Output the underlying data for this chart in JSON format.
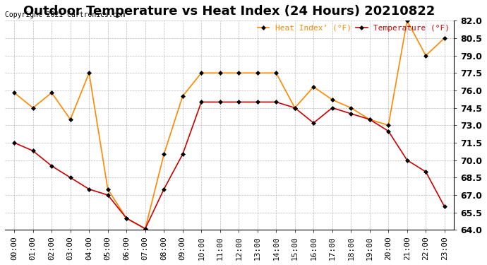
{
  "title": "Outdoor Temperature vs Heat Index (24 Hours) 20210822",
  "copyright": "Copyright 2021 Cartronics.com",
  "legend_heat": "Heat Index’ (°F)",
  "legend_temp": "Temperature (°F)",
  "hours": [
    "00:00",
    "01:00",
    "02:00",
    "03:00",
    "04:00",
    "05:00",
    "06:00",
    "07:00",
    "08:00",
    "09:00",
    "10:00",
    "11:00",
    "12:00",
    "13:00",
    "14:00",
    "15:00",
    "16:00",
    "17:00",
    "18:00",
    "19:00",
    "20:00",
    "21:00",
    "22:00",
    "23:00"
  ],
  "temperature": [
    71.5,
    70.8,
    69.5,
    68.5,
    67.5,
    67.0,
    65.0,
    64.1,
    67.5,
    70.5,
    75.0,
    75.0,
    75.0,
    75.0,
    75.0,
    74.5,
    73.2,
    74.5,
    74.0,
    73.5,
    72.5,
    70.0,
    69.0,
    66.0
  ],
  "heat_index": [
    75.8,
    74.5,
    75.8,
    73.5,
    77.5,
    67.5,
    65.0,
    64.1,
    70.5,
    75.5,
    77.5,
    77.5,
    77.5,
    77.5,
    77.5,
    74.5,
    76.3,
    75.2,
    74.5,
    73.5,
    73.0,
    82.0,
    79.0,
    80.5
  ],
  "ylim": [
    64.0,
    82.0
  ],
  "yticks": [
    64.0,
    65.5,
    67.0,
    68.5,
    70.0,
    71.5,
    73.0,
    74.5,
    76.0,
    77.5,
    79.0,
    80.5,
    82.0
  ],
  "temp_color": "#cc0000",
  "heat_color": "#ff8800",
  "background_color": "#ffffff",
  "grid_color": "#aaaaaa",
  "title_fontsize": 13,
  "axis_fontsize": 8,
  "marker": "D",
  "marker_size": 3
}
